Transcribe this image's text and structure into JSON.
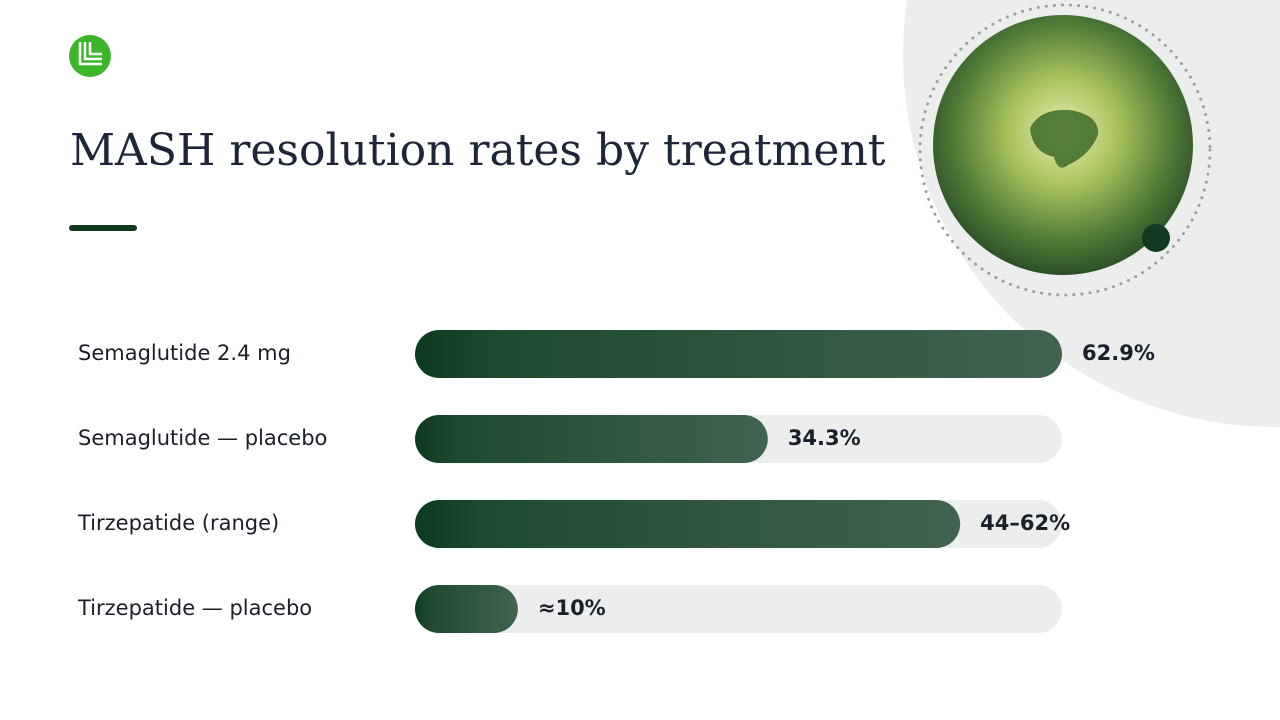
{
  "chart_data": {
    "type": "bar",
    "orientation": "horizontal",
    "title": "MASH resolution rates by treatment",
    "categories": [
      "Semaglutide 2.4 mg",
      "Semaglutide — placebo",
      "Tirzepatide (range)",
      "Tirzepatide — placebo"
    ],
    "values": [
      62.9,
      34.3,
      53,
      10
    ],
    "value_labels": [
      "62.9%",
      "34.3%",
      "44–62%",
      "≈10%"
    ],
    "color": "#0d3a1f",
    "xlim": [
      0,
      62.9
    ]
  }
}
